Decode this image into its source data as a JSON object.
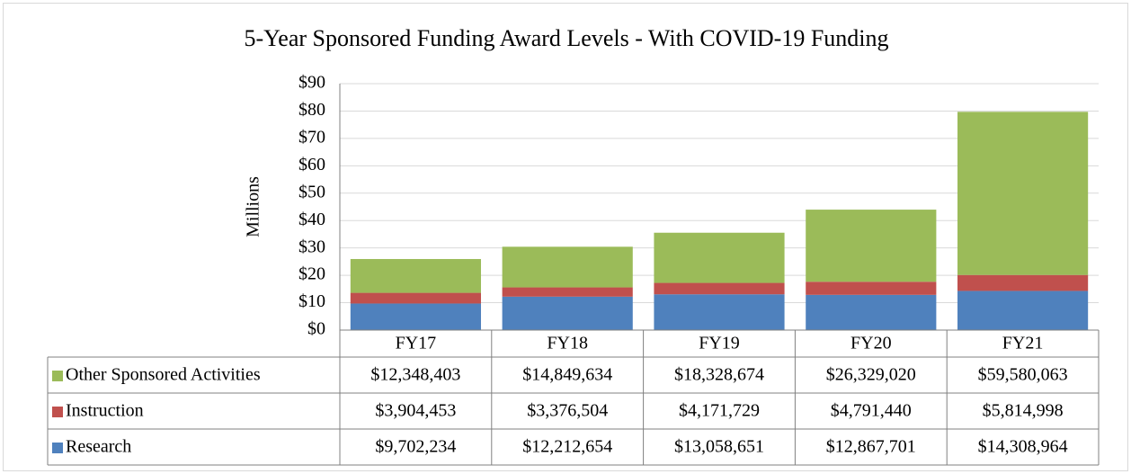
{
  "chart_data": {
    "type": "stacked_bar",
    "title": "5-Year Sponsored Funding Award Levels - With COVID-19 Funding",
    "y_label": "Millions",
    "categories": [
      "FY17",
      "FY18",
      "FY19",
      "FY20",
      "FY21"
    ],
    "series": [
      {
        "name": "Research",
        "color": "#4f81bd",
        "values": [
          9.702234,
          12.212654,
          13.058651,
          12.867701,
          14.308964
        ],
        "value_labels": [
          "$9,702,234",
          "$12,212,654",
          "$13,058,651",
          "$12,867,701",
          "$14,308,964"
        ]
      },
      {
        "name": "Instruction",
        "color": "#c0504d",
        "values": [
          3.904453,
          3.376504,
          4.171729,
          4.79144,
          5.814998
        ],
        "value_labels": [
          "$3,904,453",
          "$3,376,504",
          "$4,171,729",
          "$4,791,440",
          "$5,814,998"
        ]
      },
      {
        "name": "Other Sponsored Activities",
        "color": "#9bbb59",
        "values": [
          12.348403,
          14.849634,
          18.328674,
          26.32902,
          59.580063
        ],
        "value_labels": [
          "$12,348,403",
          "$14,849,634",
          "$18,328,674",
          "$26,329,020",
          "$59,580,063"
        ]
      }
    ],
    "ylim": [
      0,
      90
    ],
    "yticks": [
      {
        "value": 0,
        "label": "$0"
      },
      {
        "value": 10,
        "label": "$10"
      },
      {
        "value": 20,
        "label": "$20"
      },
      {
        "value": 30,
        "label": "$30"
      },
      {
        "value": 40,
        "label": "$40"
      },
      {
        "value": 50,
        "label": "$50"
      },
      {
        "value": 60,
        "label": "$60"
      },
      {
        "value": 70,
        "label": "$70"
      },
      {
        "value": 80,
        "label": "$80"
      },
      {
        "value": 90,
        "label": "$90"
      }
    ],
    "grid": true
  }
}
